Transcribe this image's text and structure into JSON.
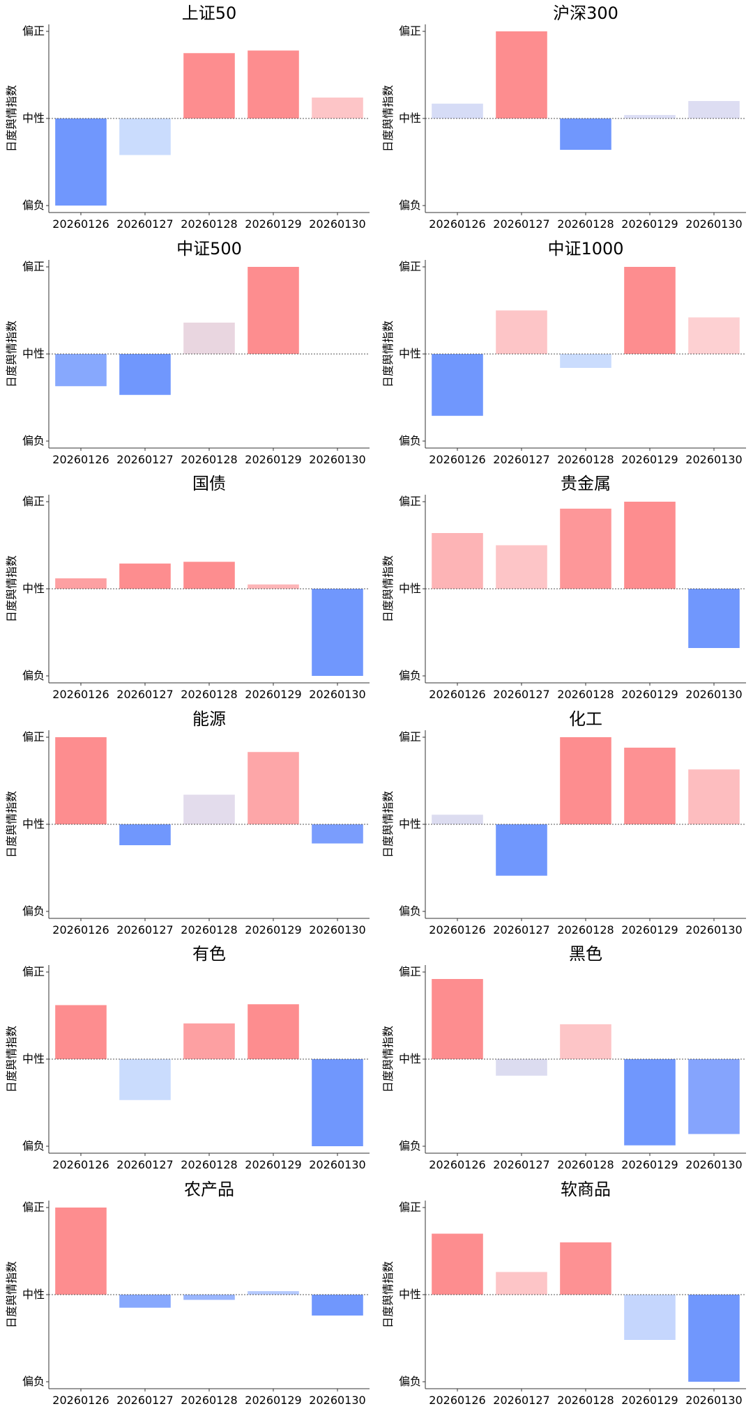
{
  "chart_data": [
    {
      "type": "bar",
      "title": "上证50",
      "ylabel": "日度舆情指数",
      "ytick_labels": [
        "偏正",
        "中性",
        "偏负"
      ],
      "ylim": [
        -1,
        1
      ],
      "categories": [
        "20260126",
        "20260127",
        "20260128",
        "20260129",
        "20260130"
      ],
      "values": [
        -1.0,
        -0.42,
        0.75,
        0.78,
        0.24
      ],
      "colors": [
        "#7097fd",
        "#cadcfd",
        "#fd8d8f",
        "#fd8d8f",
        "#fdc5c7"
      ]
    },
    {
      "type": "bar",
      "title": "沪深300",
      "ylabel": "日度舆情指数",
      "ytick_labels": [
        "偏正",
        "中性",
        "偏负"
      ],
      "ylim": [
        -1,
        1
      ],
      "categories": [
        "20260126",
        "20260127",
        "20260128",
        "20260129",
        "20260130"
      ],
      "values": [
        0.17,
        1.0,
        -0.36,
        0.04,
        0.2
      ],
      "colors": [
        "#d6dcf6",
        "#fd8d8f",
        "#7097fd",
        "#dcdef5",
        "#ddddf2"
      ]
    },
    {
      "type": "bar",
      "title": "中证500",
      "ylabel": "日度舆情指数",
      "ytick_labels": [
        "偏正",
        "中性",
        "偏负"
      ],
      "ylim": [
        -1,
        1
      ],
      "categories": [
        "20260126",
        "20260127",
        "20260128",
        "20260129",
        "20260130"
      ],
      "values": [
        -0.37,
        -0.47,
        0.36,
        1.0,
        0.0
      ],
      "colors": [
        "#87a8fd",
        "#7097fd",
        "#e9d6e0",
        "#fd8d8f",
        "#ffffff"
      ]
    },
    {
      "type": "bar",
      "title": "中证1000",
      "ylabel": "日度舆情指数",
      "ytick_labels": [
        "偏正",
        "中性",
        "偏负"
      ],
      "ylim": [
        -1,
        1
      ],
      "categories": [
        "20260126",
        "20260127",
        "20260128",
        "20260129",
        "20260130"
      ],
      "values": [
        -0.71,
        0.5,
        -0.16,
        1.0,
        0.42
      ],
      "colors": [
        "#7097fd",
        "#fdc5c7",
        "#cadcfd",
        "#fd8d8f",
        "#fdd0d2"
      ]
    },
    {
      "type": "bar",
      "title": "国债",
      "ylabel": "日度舆情指数",
      "ytick_labels": [
        "偏正",
        "中性",
        "偏负"
      ],
      "ylim": [
        -1,
        1
      ],
      "categories": [
        "20260126",
        "20260127",
        "20260128",
        "20260129",
        "20260130"
      ],
      "values": [
        0.12,
        0.29,
        0.31,
        0.05,
        -1.0
      ],
      "colors": [
        "#fda0a2",
        "#fd8d8f",
        "#fd8d8f",
        "#fdb6b8",
        "#7097fd"
      ]
    },
    {
      "type": "bar",
      "title": "贵金属",
      "ylabel": "日度舆情指数",
      "ytick_labels": [
        "偏正",
        "中性",
        "偏负"
      ],
      "ylim": [
        -1,
        1
      ],
      "categories": [
        "20260126",
        "20260127",
        "20260128",
        "20260129",
        "20260130"
      ],
      "values": [
        0.64,
        0.5,
        0.92,
        1.0,
        -0.68
      ],
      "colors": [
        "#fdb4b6",
        "#fdc5c7",
        "#fd9799",
        "#fd8d8f",
        "#7097fd"
      ]
    },
    {
      "type": "bar",
      "title": "能源",
      "ylabel": "日度舆情指数",
      "ytick_labels": [
        "偏正",
        "中性",
        "偏负"
      ],
      "ylim": [
        -1,
        1
      ],
      "categories": [
        "20260126",
        "20260127",
        "20260128",
        "20260129",
        "20260130"
      ],
      "values": [
        1.0,
        -0.24,
        0.34,
        0.83,
        -0.22
      ],
      "colors": [
        "#fd8d8f",
        "#7097fd",
        "#e3dcec",
        "#fda6a8",
        "#7a9dfd"
      ]
    },
    {
      "type": "bar",
      "title": "化工",
      "ylabel": "日度舆情指数",
      "ytick_labels": [
        "偏正",
        "中性",
        "偏负"
      ],
      "ylim": [
        -1,
        1
      ],
      "categories": [
        "20260126",
        "20260127",
        "20260128",
        "20260129",
        "20260130"
      ],
      "values": [
        0.11,
        -0.59,
        1.0,
        0.88,
        0.63
      ],
      "colors": [
        "#dcdcf0",
        "#7097fd",
        "#fd8d8f",
        "#fd9193",
        "#fdbdbf"
      ]
    },
    {
      "type": "bar",
      "title": "有色",
      "ylabel": "日度舆情指数",
      "ytick_labels": [
        "偏正",
        "中性",
        "偏负"
      ],
      "ylim": [
        -1,
        1
      ],
      "categories": [
        "20260126",
        "20260127",
        "20260128",
        "20260129",
        "20260130"
      ],
      "values": [
        0.62,
        -0.47,
        0.41,
        0.63,
        -1.0
      ],
      "colors": [
        "#fd8d8f",
        "#cadcfd",
        "#fda0a2",
        "#fd8d8f",
        "#7097fd"
      ]
    },
    {
      "type": "bar",
      "title": "黑色",
      "ylabel": "日度舆情指数",
      "ytick_labels": [
        "偏正",
        "中性",
        "偏负"
      ],
      "ylim": [
        -1,
        1
      ],
      "categories": [
        "20260126",
        "20260127",
        "20260128",
        "20260129",
        "20260130"
      ],
      "values": [
        0.92,
        -0.19,
        0.4,
        -0.99,
        -0.86
      ],
      "colors": [
        "#fd8d8f",
        "#dcdcf0",
        "#fdc5c7",
        "#7097fd",
        "#85a4fd"
      ]
    },
    {
      "type": "bar",
      "title": "农产品",
      "ylabel": "日度舆情指数",
      "ytick_labels": [
        "偏正",
        "中性",
        "偏负"
      ],
      "ylim": [
        -1,
        1
      ],
      "categories": [
        "20260126",
        "20260127",
        "20260128",
        "20260129",
        "20260130"
      ],
      "values": [
        1.0,
        -0.15,
        -0.06,
        0.04,
        -0.24
      ],
      "colors": [
        "#fd8d8f",
        "#87a8fd",
        "#9ab6fd",
        "#b6cafd",
        "#7097fd"
      ]
    },
    {
      "type": "bar",
      "title": "软商品",
      "ylabel": "日度舆情指数",
      "ytick_labels": [
        "偏正",
        "中性",
        "偏负"
      ],
      "ylim": [
        -1,
        1
      ],
      "categories": [
        "20260126",
        "20260127",
        "20260128",
        "20260129",
        "20260130"
      ],
      "values": [
        0.7,
        0.26,
        0.6,
        -0.52,
        -1.0
      ],
      "colors": [
        "#fd8d8f",
        "#fdc5c7",
        "#fd9193",
        "#c5d6fd",
        "#7097fd"
      ]
    }
  ]
}
